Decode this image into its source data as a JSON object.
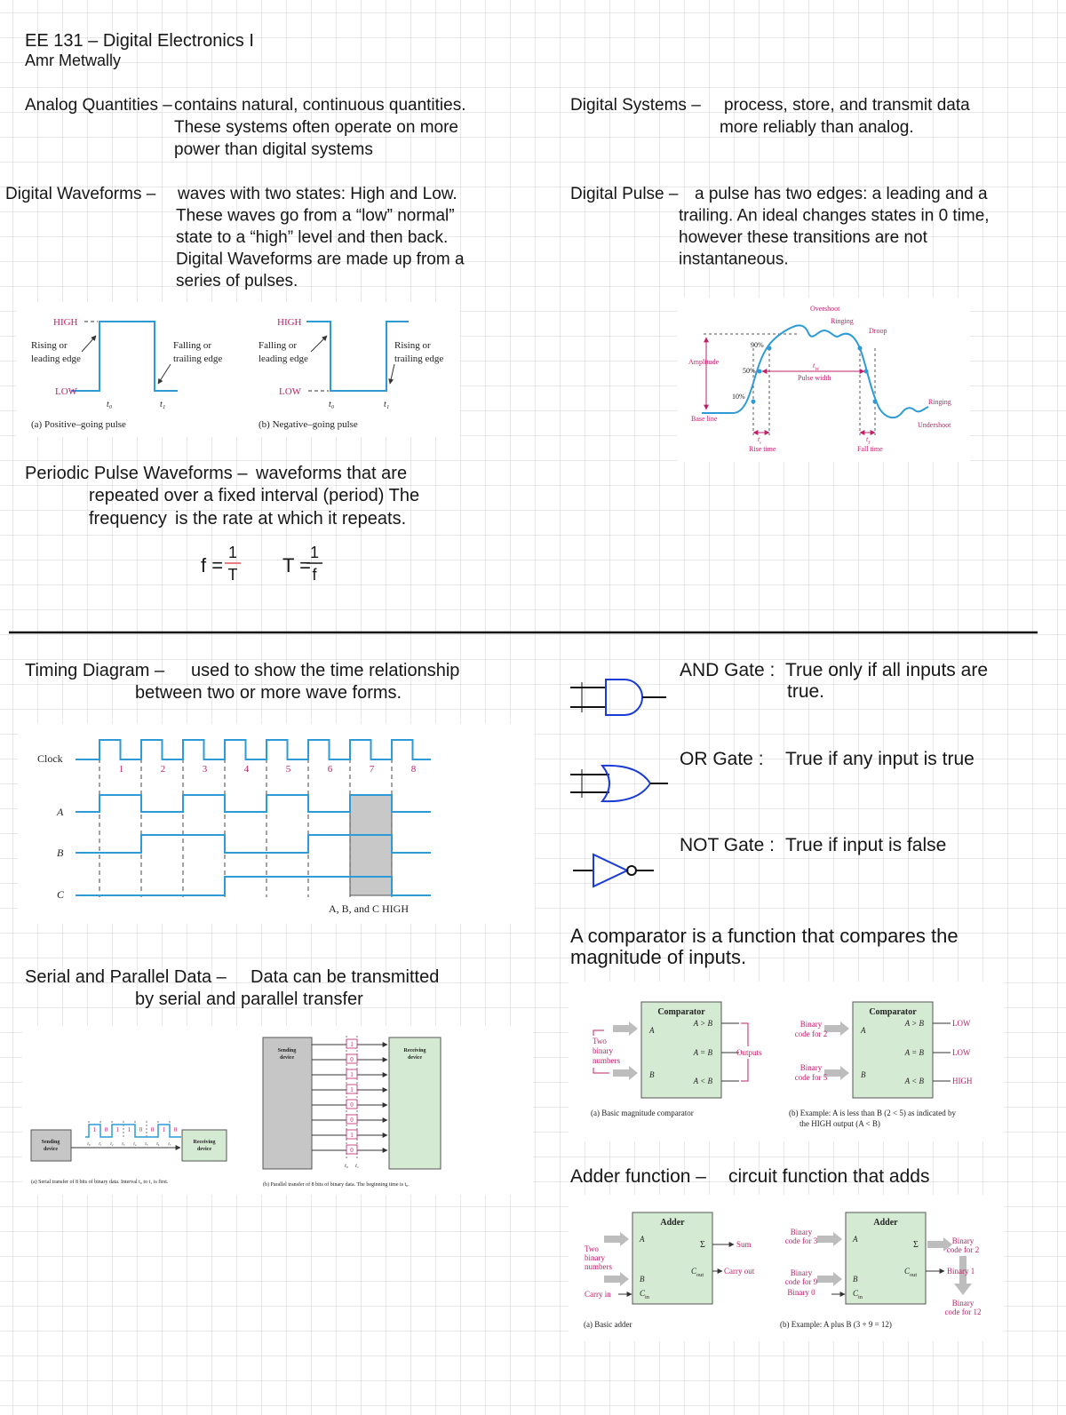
{
  "header": {
    "course": "EE 131 – Digital Electronics I",
    "author": "Amr Metwally"
  },
  "notes": {
    "analog": {
      "term": "Analog Quantities –",
      "lines": [
        "contains natural, continuous quantities.",
        "These systems often operate on more",
        "power than digital systems"
      ]
    },
    "digital_systems": {
      "term": "Digital Systems –",
      "lines": [
        "process, store, and transmit data",
        "more reliably than analog."
      ]
    },
    "digital_waveforms": {
      "term": "Digital Waveforms –",
      "lines": [
        "waves with two states: High and Low.",
        "These waves go from a “low” normal”",
        "state to a “high” level and then back.",
        "Digital Waveforms are made up from a",
        "series of pulses."
      ]
    },
    "digital_pulse": {
      "term": "Digital Pulse –",
      "lines": [
        "a pulse has two edges: a leading and a",
        "trailing. An ideal changes states in 0 time,",
        "however these transitions are not",
        "instantaneous."
      ]
    },
    "periodic": {
      "term": "Periodic Pulse Waveforms –",
      "lines": [
        "waveforms that are",
        "repeated over a fixed interval (period) The"
      ],
      "highlight": "frequency",
      "rest": "is the rate at which it repeats.",
      "formulas": [
        {
          "lhs": "f =",
          "num": "1",
          "den": "T"
        },
        {
          "lhs": "T =",
          "num": "1",
          "den": "f"
        }
      ]
    },
    "timing": {
      "term": "Timing Diagram –",
      "lines": [
        "used to show the time relationship",
        "between two or more wave forms."
      ]
    },
    "serial": {
      "term": "Serial and Parallel Data –",
      "lines": [
        "Data can be transmitted",
        "by serial and parallel transfer"
      ]
    },
    "gates": [
      {
        "term": "AND Gate :",
        "lines": [
          "True only if all inputs are",
          "true."
        ]
      },
      {
        "term": "OR Gate :",
        "lines": [
          "True if any input is true"
        ]
      },
      {
        "term": "NOT Gate :",
        "lines": [
          "True if input is false"
        ]
      }
    ],
    "comparator": {
      "lines": [
        "A comparator is a function that compares the",
        "magnitude of inputs."
      ]
    },
    "adder": {
      "term": "Adder function –",
      "lines": [
        "circuit function that adds"
      ]
    }
  },
  "figures": {
    "pulses": {
      "positive": {
        "high": "HIGH",
        "low": "LOW",
        "left": [
          "Rising or",
          "leading edge"
        ],
        "right": [
          "Falling or",
          "trailing edge"
        ],
        "t0": "t₀",
        "t1": "t₁",
        "caption": "(a) Positive–going pulse"
      },
      "negative": {
        "high": "HIGH",
        "low": "LOW",
        "left": [
          "Falling or",
          "leading edge"
        ],
        "right": [
          "Rising or",
          "trailing edge"
        ],
        "t0": "t₀",
        "t1": "t₁",
        "caption": "(b) Negative–going pulse"
      }
    },
    "pulse_detail": {
      "overshoot": "Overshoot",
      "ringing_top": "Ringing",
      "droop": "Droop",
      "p90": "90%",
      "p50": "50%",
      "p10": "10%",
      "amplitude": "Amplitude",
      "tw": [
        "t",
        "W"
      ],
      "pulse_width": "Pulse width",
      "ringing_bottom": "Ringing",
      "undershoot": "Undershoot",
      "base_line": "Base line",
      "tr": [
        "t",
        "r"
      ],
      "rise_time": "Rise time",
      "tf": [
        "t",
        "f"
      ],
      "fall_time": "Fall time"
    },
    "timing": {
      "signals": [
        "Clock",
        "A",
        "B",
        "C"
      ],
      "pulses": [
        "1",
        "2",
        "3",
        "4",
        "5",
        "6",
        "7",
        "8"
      ],
      "caption": "A, B, and C HIGH"
    },
    "serial": {
      "sending": [
        "Sending",
        "device"
      ],
      "receiving": [
        "Receiving",
        "device"
      ],
      "bits": [
        "1",
        "0",
        "1",
        "1",
        "0",
        "0",
        "1",
        "0"
      ],
      "times": [
        "t₀",
        "t₁",
        "t₂",
        "t₃",
        "t₄",
        "t₅",
        "t₆",
        "t₇"
      ],
      "caption": "(a) Serial transfer of 8 bits of binary data. Interval t₀ to t₁ is first."
    },
    "parallel": {
      "sending": [
        "Sending",
        "device"
      ],
      "receiving": [
        "Receiving",
        "device"
      ],
      "bits": [
        "1",
        "0",
        "1",
        "1",
        "0",
        "0",
        "1",
        "0"
      ],
      "times": [
        "t₀",
        "t₁"
      ],
      "caption": "(b) Parallel transfer of 8 bits of binary data. The beginning time is t₀."
    },
    "comparator_a": {
      "title": "Comparator",
      "in_a": "A",
      "in_b": "B",
      "outputs": [
        "A > B",
        "A = B",
        "A < B"
      ],
      "inputs_label": [
        "Two",
        "binary",
        "numbers"
      ],
      "outputs_label": "Outputs",
      "caption": "(a) Basic magnitude comparator"
    },
    "comparator_b": {
      "title": "Comparator",
      "in_a": "A",
      "in_b": "B",
      "outputs": [
        "A > B",
        "A = B",
        "A < B"
      ],
      "code_a": [
        "Binary",
        "code for 2"
      ],
      "code_b": [
        "Binary",
        "code for 5"
      ],
      "results": [
        "LOW",
        "LOW",
        "HIGH"
      ],
      "caption": [
        "(b) Example: A is less than B (2 < 5) as indicated by",
        "the HIGH output (A < B)"
      ]
    },
    "adder_a": {
      "title": "Adder",
      "in_a": "A",
      "in_b": "B",
      "sum": "Σ",
      "cout": [
        "C",
        "out"
      ],
      "cin": [
        "C",
        "in"
      ],
      "sum_label": "Sum",
      "carry_out": "Carry out",
      "inputs_label": [
        "Two",
        "binary",
        "numbers"
      ],
      "carry_in": "Carry in",
      "caption": "(a) Basic adder"
    },
    "adder_b": {
      "title": "Adder",
      "in_a": "A",
      "in_b": "B",
      "sum": "Σ",
      "cout": [
        "C",
        "out"
      ],
      "cin": [
        "C",
        "in"
      ],
      "code_a": [
        "Binary",
        "code for 3"
      ],
      "code_b": [
        "Binary",
        "code for 9"
      ],
      "carry_in": "Binary 0",
      "sum_out": [
        "Binary",
        "code for 2"
      ],
      "carry_out": "Binary 1",
      "total": [
        "Binary",
        "code for 12"
      ],
      "caption": "(b) Example: A plus B (3 + 9 = 12)"
    }
  }
}
